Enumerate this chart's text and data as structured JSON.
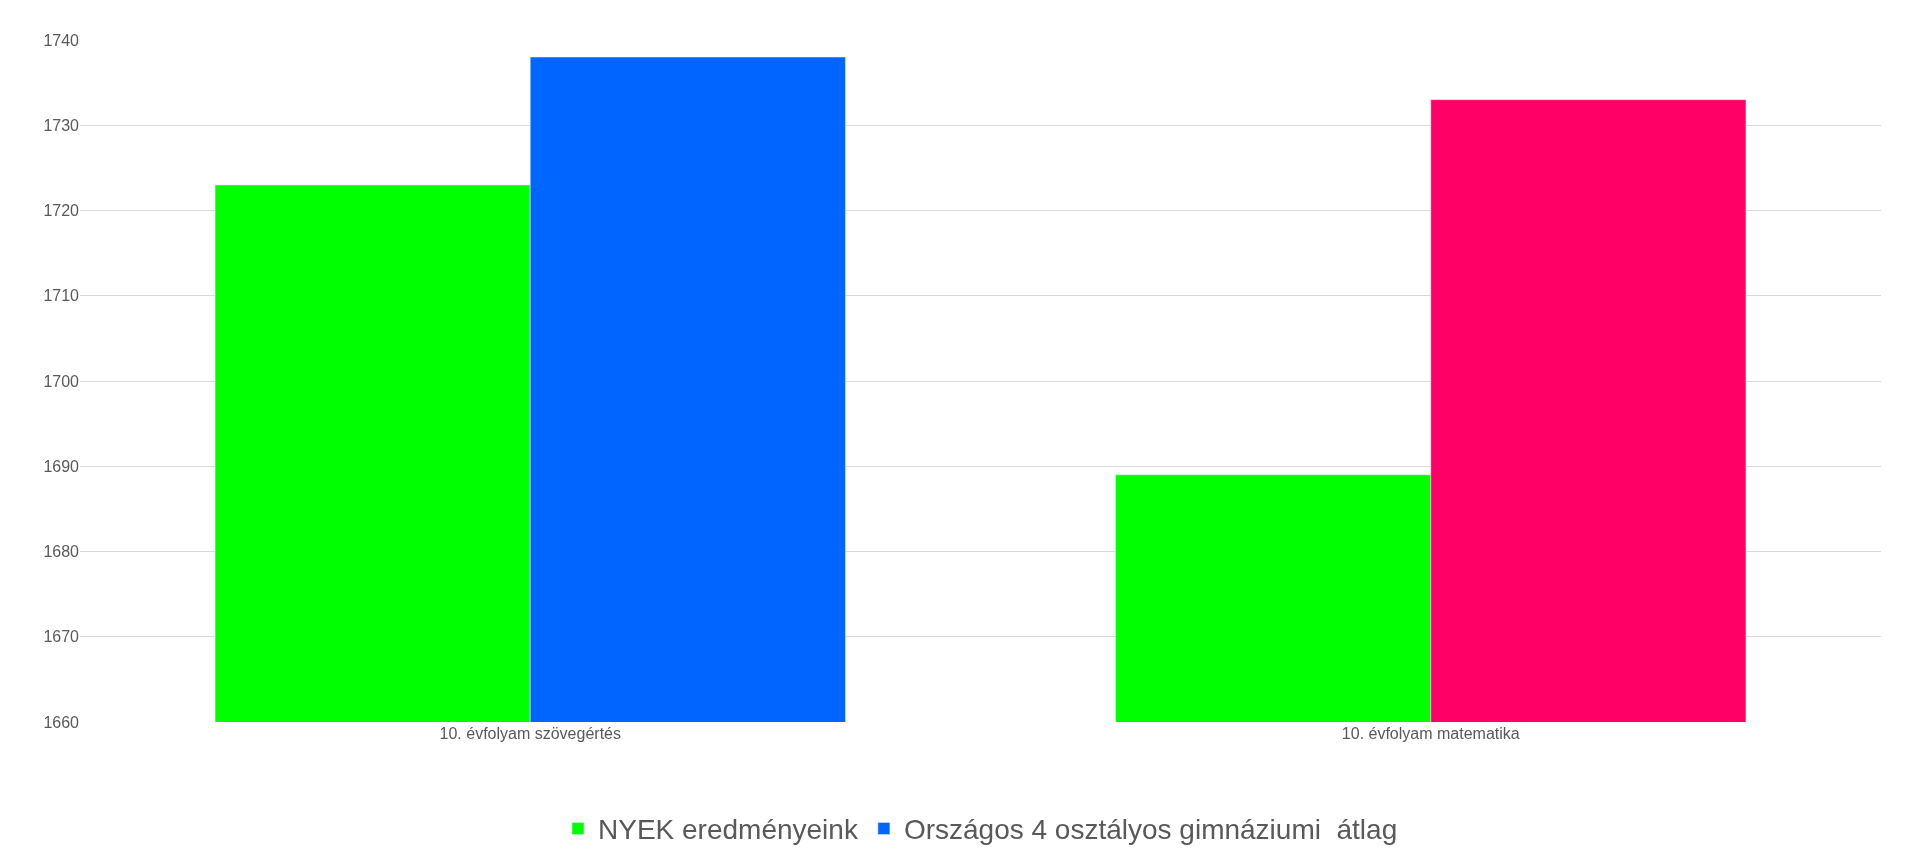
{
  "chart_data": {
    "type": "bar",
    "categories": [
      "10. évfolyam szövegértés",
      "10. évfolyam matematika"
    ],
    "series": [
      {
        "name": "NYEK eredményeink",
        "color": "#00ff00",
        "values": [
          1723,
          1689
        ]
      },
      {
        "name": "Országos 4 osztályos gimnáziumi  átlag",
        "color": "#0066ff",
        "colors": [
          "#0066ff",
          "#ff0066"
        ],
        "values": [
          1738,
          1733
        ]
      }
    ],
    "ylim": [
      1660,
      1740
    ],
    "yticks": [
      1660,
      1670,
      1680,
      1690,
      1700,
      1710,
      1720,
      1730,
      1740
    ],
    "grid": "y",
    "legend": "bottom"
  }
}
